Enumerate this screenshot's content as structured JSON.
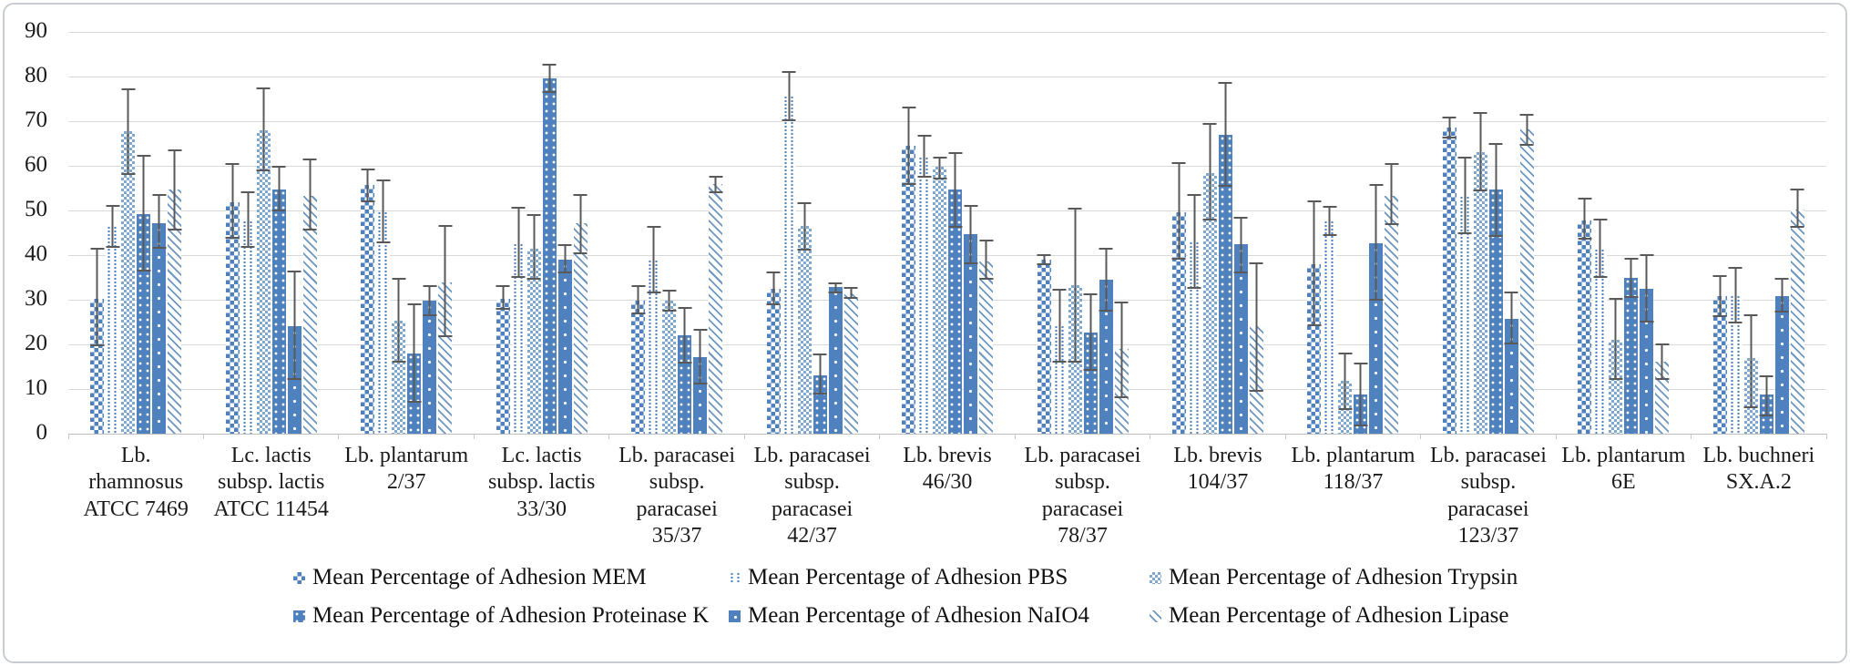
{
  "figure": {
    "background": "#ffffff",
    "border_color": "#c9cdd2",
    "grid_color": "#d9d9d9",
    "error_bar_color": "#595959",
    "accent_blue": "#4e81bd"
  },
  "chart_data": {
    "type": "bar",
    "title": "",
    "xlabel": "",
    "ylabel": "",
    "ylim": [
      0,
      90
    ],
    "y_ticks": [
      0,
      10,
      20,
      30,
      40,
      50,
      60,
      70,
      80,
      90
    ],
    "grid": true,
    "legend_position": "bottom",
    "categories": [
      "Lb. rhamnosus ATCC 7469",
      "Lc. lactis subsp. lactis ATCC 11454",
      "Lb. plantarum 2/37",
      "Lc. lactis subsp. lactis 33/30",
      "Lb. paracasei subsp. paracasei 35/37",
      "Lb. paracasei subsp. paracasei 42/37",
      "Lb. brevis 46/30",
      "Lb. paracasei subsp. paracasei 78/37",
      "Lb. brevis 104/37",
      "Lb. plantarum 118/37",
      "Lb. paracasei subsp. paracasei 123/37",
      "Lb. plantarum 6E",
      "Lb. buchneri SX.A.2"
    ],
    "series": [
      {
        "name": "Mean Percentage of Adhesion MEM",
        "pattern": "p-mem",
        "values": [
          30.2,
          51.8,
          55.7,
          30.2,
          29.8,
          32.4,
          64.5,
          39.0,
          49.6,
          38.0,
          68.6,
          47.8,
          30.8
        ],
        "err_low": [
          19.6,
          43.7,
          51.8,
          27.8,
          26.7,
          28.8,
          55.7,
          37.8,
          39.0,
          24.1,
          66.1,
          43.4,
          26.1
        ],
        "err_high": [
          41.6,
          60.6,
          59.4,
          33.3,
          33.3,
          36.3,
          73.3,
          40.2,
          60.8,
          52.2,
          71.0,
          52.9,
          35.5
        ]
      },
      {
        "name": "Mean Percentage of Adhesion PBS",
        "pattern": "p-pbs",
        "values": [
          46.5,
          47.8,
          49.8,
          42.7,
          39.0,
          75.7,
          62.0,
          24.3,
          43.1,
          47.8,
          53.3,
          41.4,
          31.0
        ],
        "err_low": [
          41.6,
          41.6,
          42.7,
          34.9,
          31.4,
          70.0,
          57.3,
          15.9,
          32.4,
          44.3,
          44.7,
          34.9,
          24.7
        ],
        "err_high": [
          51.2,
          54.3,
          56.9,
          50.8,
          46.5,
          81.2,
          66.9,
          32.4,
          53.7,
          51.0,
          62.0,
          48.2,
          37.3
        ]
      },
      {
        "name": "Mean Percentage of Adhesion Trypsin",
        "pattern": "p-tryp",
        "values": [
          67.8,
          68.0,
          25.3,
          41.4,
          29.8,
          46.5,
          59.8,
          33.3,
          58.4,
          11.8,
          63.1,
          21.0,
          16.9
        ],
        "err_low": [
          58.0,
          58.8,
          15.9,
          34.5,
          27.3,
          41.0,
          56.9,
          15.9,
          47.8,
          5.3,
          54.3,
          12.1,
          5.7
        ],
        "err_high": [
          77.3,
          77.6,
          34.9,
          49.2,
          32.2,
          51.8,
          62.0,
          50.6,
          69.6,
          18.2,
          72.0,
          30.4,
          26.7
        ]
      },
      {
        "name": "Mean Percentage of Adhesion Proteinase K",
        "pattern": "p-prok",
        "values": [
          49.2,
          54.7,
          18.0,
          79.5,
          22.0,
          13.1,
          54.7,
          22.7,
          66.9,
          8.8,
          54.7,
          34.9,
          8.8
        ],
        "err_low": [
          36.3,
          49.8,
          6.9,
          76.4,
          15.8,
          8.8,
          46.1,
          14.1,
          55.3,
          1.6,
          44.1,
          30.5,
          3.9
        ],
        "err_high": [
          62.4,
          60.0,
          29.2,
          82.9,
          28.3,
          18.0,
          63.1,
          31.4,
          78.8,
          15.9,
          65.1,
          39.3,
          13.1
        ]
      },
      {
        "name": "Mean Percentage of Adhesion NaIO4",
        "pattern": "p-naio",
        "values": [
          47.1,
          24.1,
          29.8,
          39.0,
          17.2,
          32.9,
          44.7,
          34.5,
          42.4,
          42.7,
          25.7,
          32.5,
          30.8
        ],
        "err_low": [
          41.4,
          12.0,
          26.3,
          35.9,
          11.0,
          31.4,
          38.0,
          27.3,
          35.9,
          29.8,
          20.0,
          25.0,
          27.1
        ],
        "err_high": [
          53.7,
          36.5,
          33.3,
          42.4,
          23.5,
          33.9,
          51.2,
          41.6,
          48.6,
          55.9,
          31.8,
          40.3,
          34.9
        ]
      },
      {
        "name": "Mean Percentage of Adhesion Lipase",
        "pattern": "p-lip",
        "values": [
          54.7,
          53.3,
          33.9,
          47.1,
          56.0,
          31.4,
          38.6,
          19.0,
          24.1,
          53.3,
          68.2,
          16.2,
          50.2
        ],
        "err_low": [
          45.5,
          45.5,
          21.6,
          40.3,
          53.9,
          30.2,
          34.5,
          8.0,
          9.4,
          46.7,
          64.5,
          12.1,
          46.1
        ],
        "err_high": [
          63.7,
          61.6,
          46.7,
          53.6,
          57.7,
          32.9,
          43.4,
          29.5,
          38.4,
          60.6,
          71.6,
          20.3,
          54.9
        ]
      }
    ]
  }
}
